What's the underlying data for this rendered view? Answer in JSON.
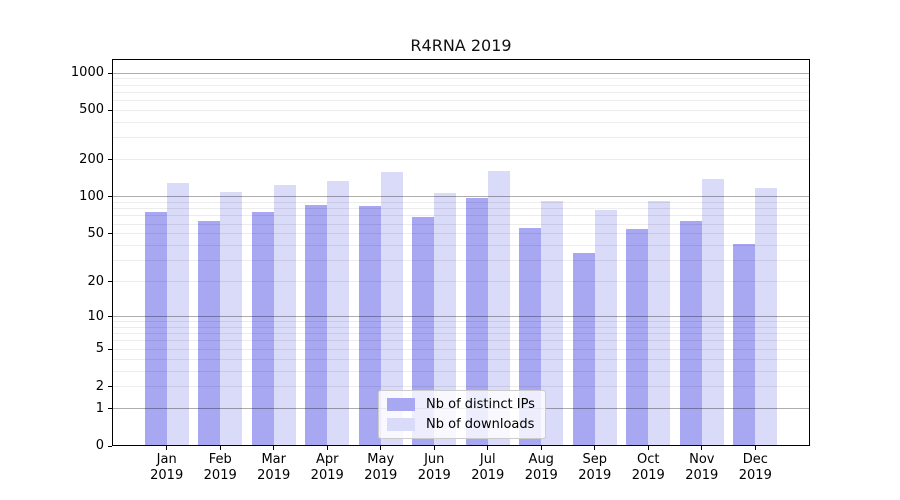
{
  "chart_data": {
    "type": "bar",
    "title": "R4RNA 2019",
    "y_scale": "log10(1+x)",
    "grid": true,
    "legend_position": "lower-center",
    "x": [
      "Jan",
      "Feb",
      "Mar",
      "Apr",
      "May",
      "Jun",
      "Jul",
      "Aug",
      "Sep",
      "Oct",
      "Nov",
      "Dec"
    ],
    "x_year": "2019",
    "y_ticks": [
      0,
      1,
      2,
      5,
      10,
      20,
      50,
      100,
      200,
      500,
      1000
    ],
    "ylim": [
      0,
      1300
    ],
    "series": [
      {
        "name": "Nb of distinct IPs",
        "color": "#a7a7f2",
        "values": [
          76,
          63,
          76,
          86,
          85,
          68,
          97,
          56,
          35,
          55,
          63,
          41
        ]
      },
      {
        "name": "Nb of downloads",
        "color": "#dadaf9",
        "values": [
          130,
          109,
          125,
          135,
          158,
          107,
          163,
          93,
          78,
          93,
          140,
          118
        ]
      }
    ]
  },
  "colors": {
    "background": "#ffffff",
    "axis": "#000000",
    "major_grid": "#b3b3b3",
    "minor_grid": "#e8e8e8"
  }
}
